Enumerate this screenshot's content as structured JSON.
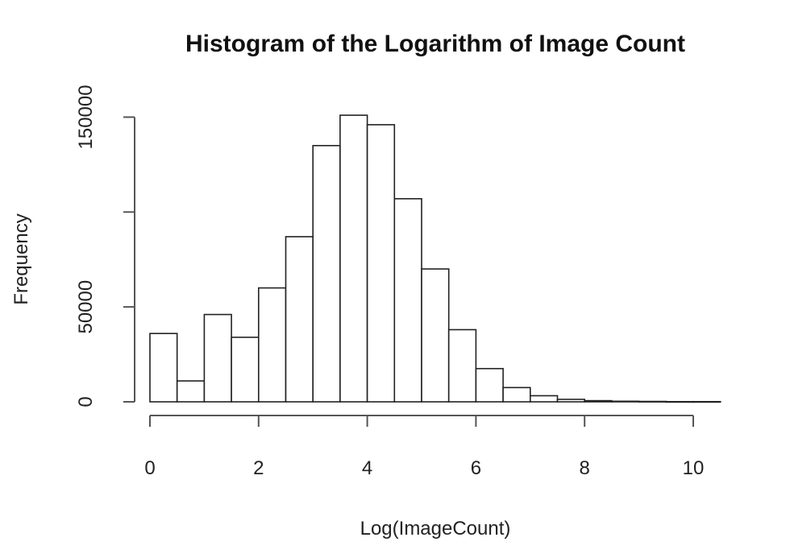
{
  "chart_data": {
    "type": "bar",
    "title": "Histogram of the Logarithm of Image Count",
    "xlabel": "Log(ImageCount)",
    "ylabel": "Frequency",
    "xlim": [
      0,
      10.5
    ],
    "ylim": [
      0,
      150000
    ],
    "bin_width": 0.5,
    "bins": [
      {
        "x0": 0.0,
        "x1": 0.5,
        "value": 36000
      },
      {
        "x0": 0.5,
        "x1": 1.0,
        "value": 11000
      },
      {
        "x0": 1.0,
        "x1": 1.5,
        "value": 46000
      },
      {
        "x0": 1.5,
        "x1": 2.0,
        "value": 34000
      },
      {
        "x0": 2.0,
        "x1": 2.5,
        "value": 60000
      },
      {
        "x0": 2.5,
        "x1": 3.0,
        "value": 87000
      },
      {
        "x0": 3.0,
        "x1": 3.5,
        "value": 135000
      },
      {
        "x0": 3.5,
        "x1": 4.0,
        "value": 151000
      },
      {
        "x0": 4.0,
        "x1": 4.5,
        "value": 146000
      },
      {
        "x0": 4.5,
        "x1": 5.0,
        "value": 107000
      },
      {
        "x0": 5.0,
        "x1": 5.5,
        "value": 70000
      },
      {
        "x0": 5.5,
        "x1": 6.0,
        "value": 38000
      },
      {
        "x0": 6.0,
        "x1": 6.5,
        "value": 17500
      },
      {
        "x0": 6.5,
        "x1": 7.0,
        "value": 7500
      },
      {
        "x0": 7.0,
        "x1": 7.5,
        "value": 3200
      },
      {
        "x0": 7.5,
        "x1": 8.0,
        "value": 1300
      },
      {
        "x0": 8.0,
        "x1": 8.5,
        "value": 600
      },
      {
        "x0": 8.5,
        "x1": 9.0,
        "value": 300
      },
      {
        "x0": 9.0,
        "x1": 9.5,
        "value": 200
      },
      {
        "x0": 9.5,
        "x1": 10.0,
        "value": 100
      },
      {
        "x0": 10.0,
        "x1": 10.5,
        "value": 100
      }
    ],
    "x_ticks": [
      0,
      2,
      4,
      6,
      8,
      10
    ],
    "x_tick_labels": [
      "0",
      "2",
      "4",
      "6",
      "8",
      "10"
    ],
    "y_ticks": [
      0,
      50000,
      100000,
      150000
    ],
    "y_tick_labels": [
      "0",
      "50000",
      "",
      "150000"
    ],
    "grid": false,
    "legend": "none"
  }
}
